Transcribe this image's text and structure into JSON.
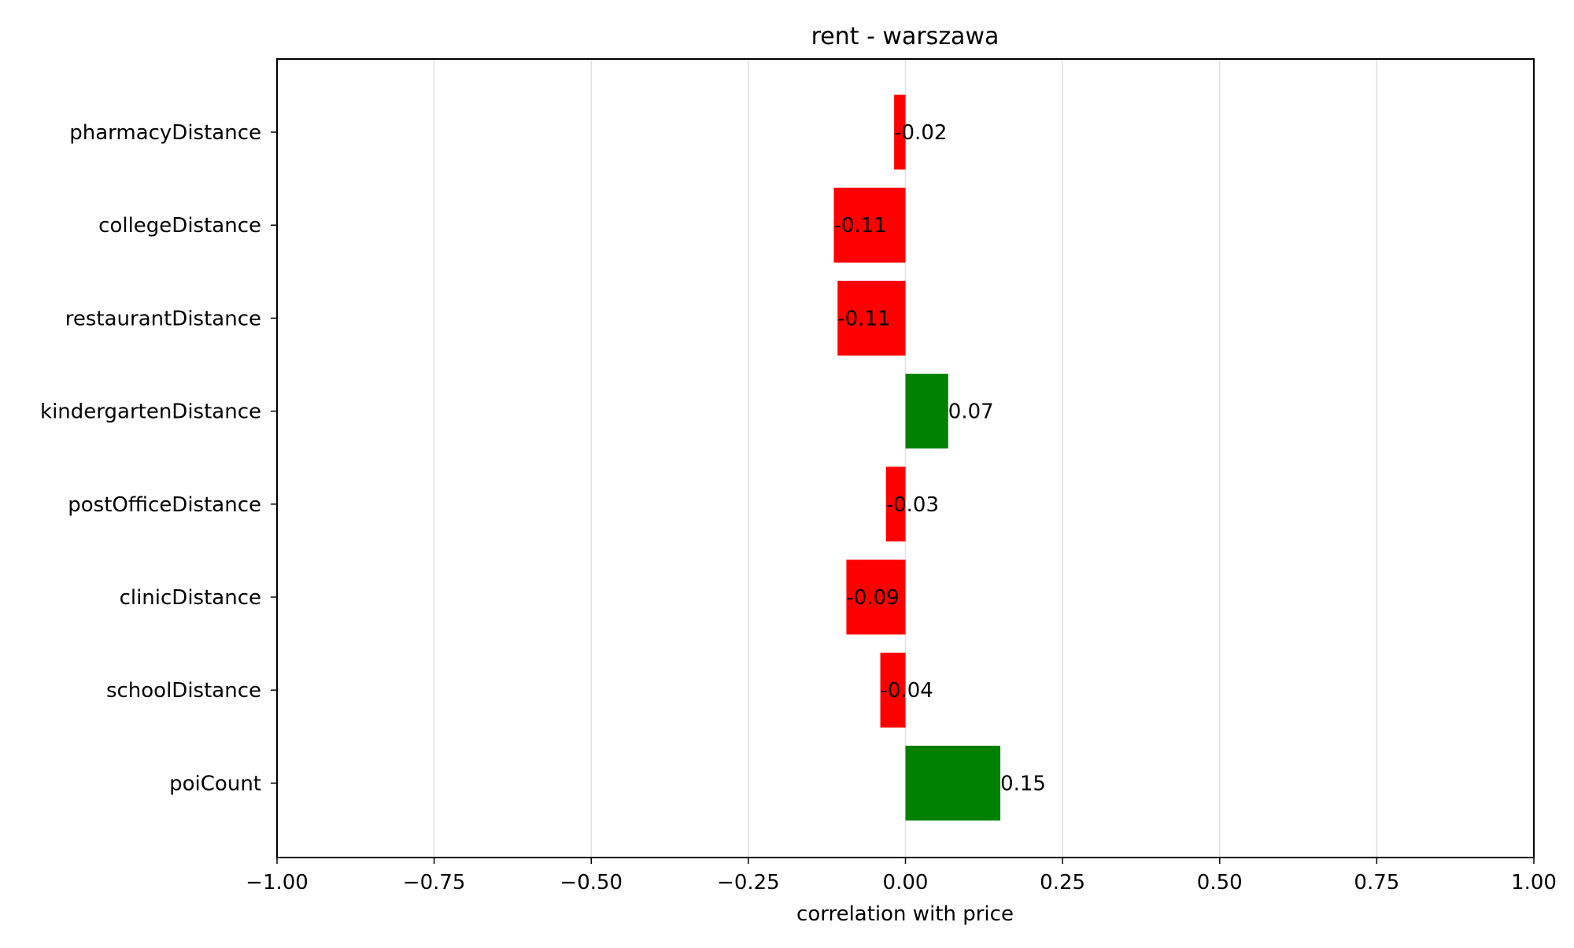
{
  "chart_data": {
    "type": "bar",
    "orientation": "horizontal",
    "title": "rent - warszawa",
    "xlabel": "correlation with price",
    "ylabel": "",
    "xlim": [
      -1.0,
      1.0
    ],
    "xticks": [
      -1.0,
      -0.75,
      -0.5,
      -0.25,
      0.0,
      0.25,
      0.5,
      0.75,
      1.0
    ],
    "xtick_labels": [
      "−1.00",
      "−0.75",
      "−0.50",
      "−0.25",
      "0.00",
      "0.25",
      "0.50",
      "0.75",
      "1.00"
    ],
    "grid": "vertical",
    "legend": "none",
    "categories": [
      "pharmacyDistance",
      "collegeDistance",
      "restaurantDistance",
      "kindergartenDistance",
      "postOfficeDistance",
      "clinicDistance",
      "schoolDistance",
      "poiCount"
    ],
    "values": [
      -0.018,
      -0.114,
      -0.108,
      0.068,
      -0.031,
      -0.094,
      -0.04,
      0.151
    ],
    "data_labels": [
      "-0.02",
      "-0.11",
      "-0.11",
      "0.07",
      "-0.03",
      "-0.09",
      "-0.04",
      "0.15"
    ],
    "colors": {
      "positive": "#008000",
      "negative": "#ff0000",
      "grid": "#e0e0e0",
      "axis": "#000000"
    }
  }
}
